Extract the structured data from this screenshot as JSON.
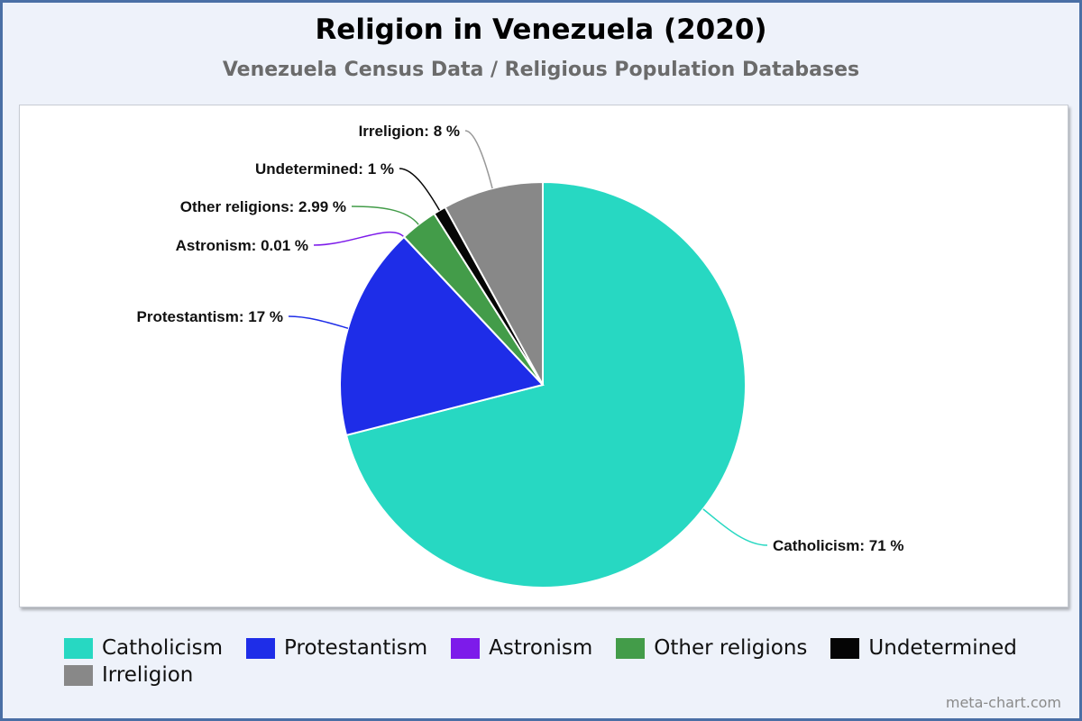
{
  "chart_data": {
    "type": "pie",
    "title": "Religion in Venezuela (2020)",
    "subtitle": "Venezuela Census Data / Religious Population Databases",
    "legend_position": "bottom",
    "slices": [
      {
        "label": "Catholicism",
        "value": 71,
        "display": "Catholicism: 71 %",
        "color": "#27d8c2"
      },
      {
        "label": "Protestantism",
        "value": 17,
        "display": "Protestantism: 17 %",
        "color": "#1e2de8"
      },
      {
        "label": "Astronism",
        "value": 0.01,
        "display": "Astronism: 0.01 %",
        "color": "#7d1bea"
      },
      {
        "label": "Other religions",
        "value": 2.99,
        "display": "Other religions: 2.99 %",
        "color": "#439c49"
      },
      {
        "label": "Undetermined",
        "value": 1,
        "display": "Undetermined: 1 %",
        "color": "#050505"
      },
      {
        "label": "Irreligion",
        "value": 8,
        "display": "Irreligion: 8 %",
        "color": "#888888"
      }
    ]
  },
  "watermark": "meta-chart.com"
}
